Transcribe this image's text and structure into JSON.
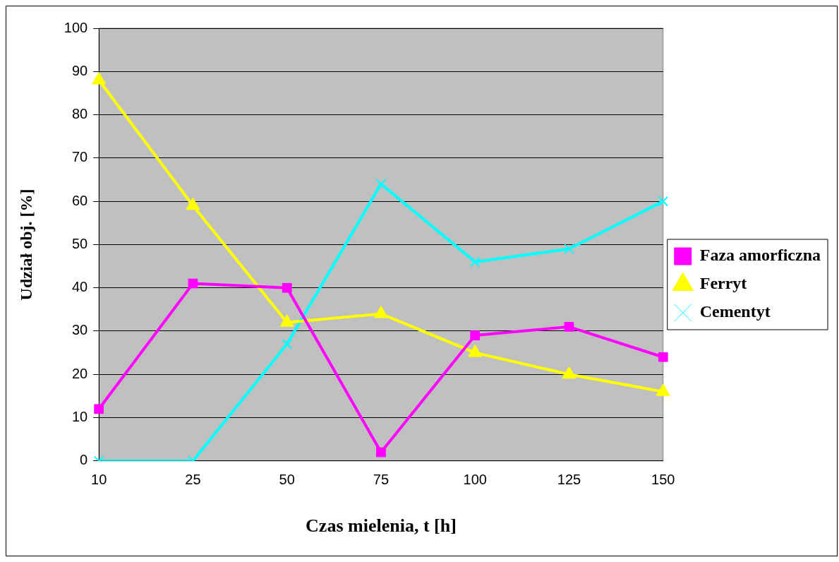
{
  "chart_data": {
    "type": "line",
    "xlabel": "Czas mielenia, t [h]",
    "ylabel": "Udział obj. [%]",
    "categories": [
      "10",
      "25",
      "50",
      "75",
      "100",
      "125",
      "150"
    ],
    "ylim": [
      0,
      100
    ],
    "yticks": [
      0,
      10,
      20,
      30,
      40,
      50,
      60,
      70,
      80,
      90,
      100
    ],
    "grid": "y",
    "legend": "right",
    "line_style": "solid",
    "series": [
      {
        "name": "Faza amorficzna",
        "color": "#ff00ff",
        "marker": "square",
        "values": [
          12,
          41,
          40,
          2,
          29,
          31,
          24
        ]
      },
      {
        "name": "Ferryt",
        "color": "#ffff00",
        "marker": "triangle",
        "values": [
          88,
          59,
          32,
          34,
          25,
          20,
          16
        ]
      },
      {
        "name": "Cementyt",
        "color": "#00ffff",
        "marker": "cross",
        "values": [
          0,
          0,
          27,
          64,
          46,
          49,
          60
        ]
      }
    ]
  }
}
